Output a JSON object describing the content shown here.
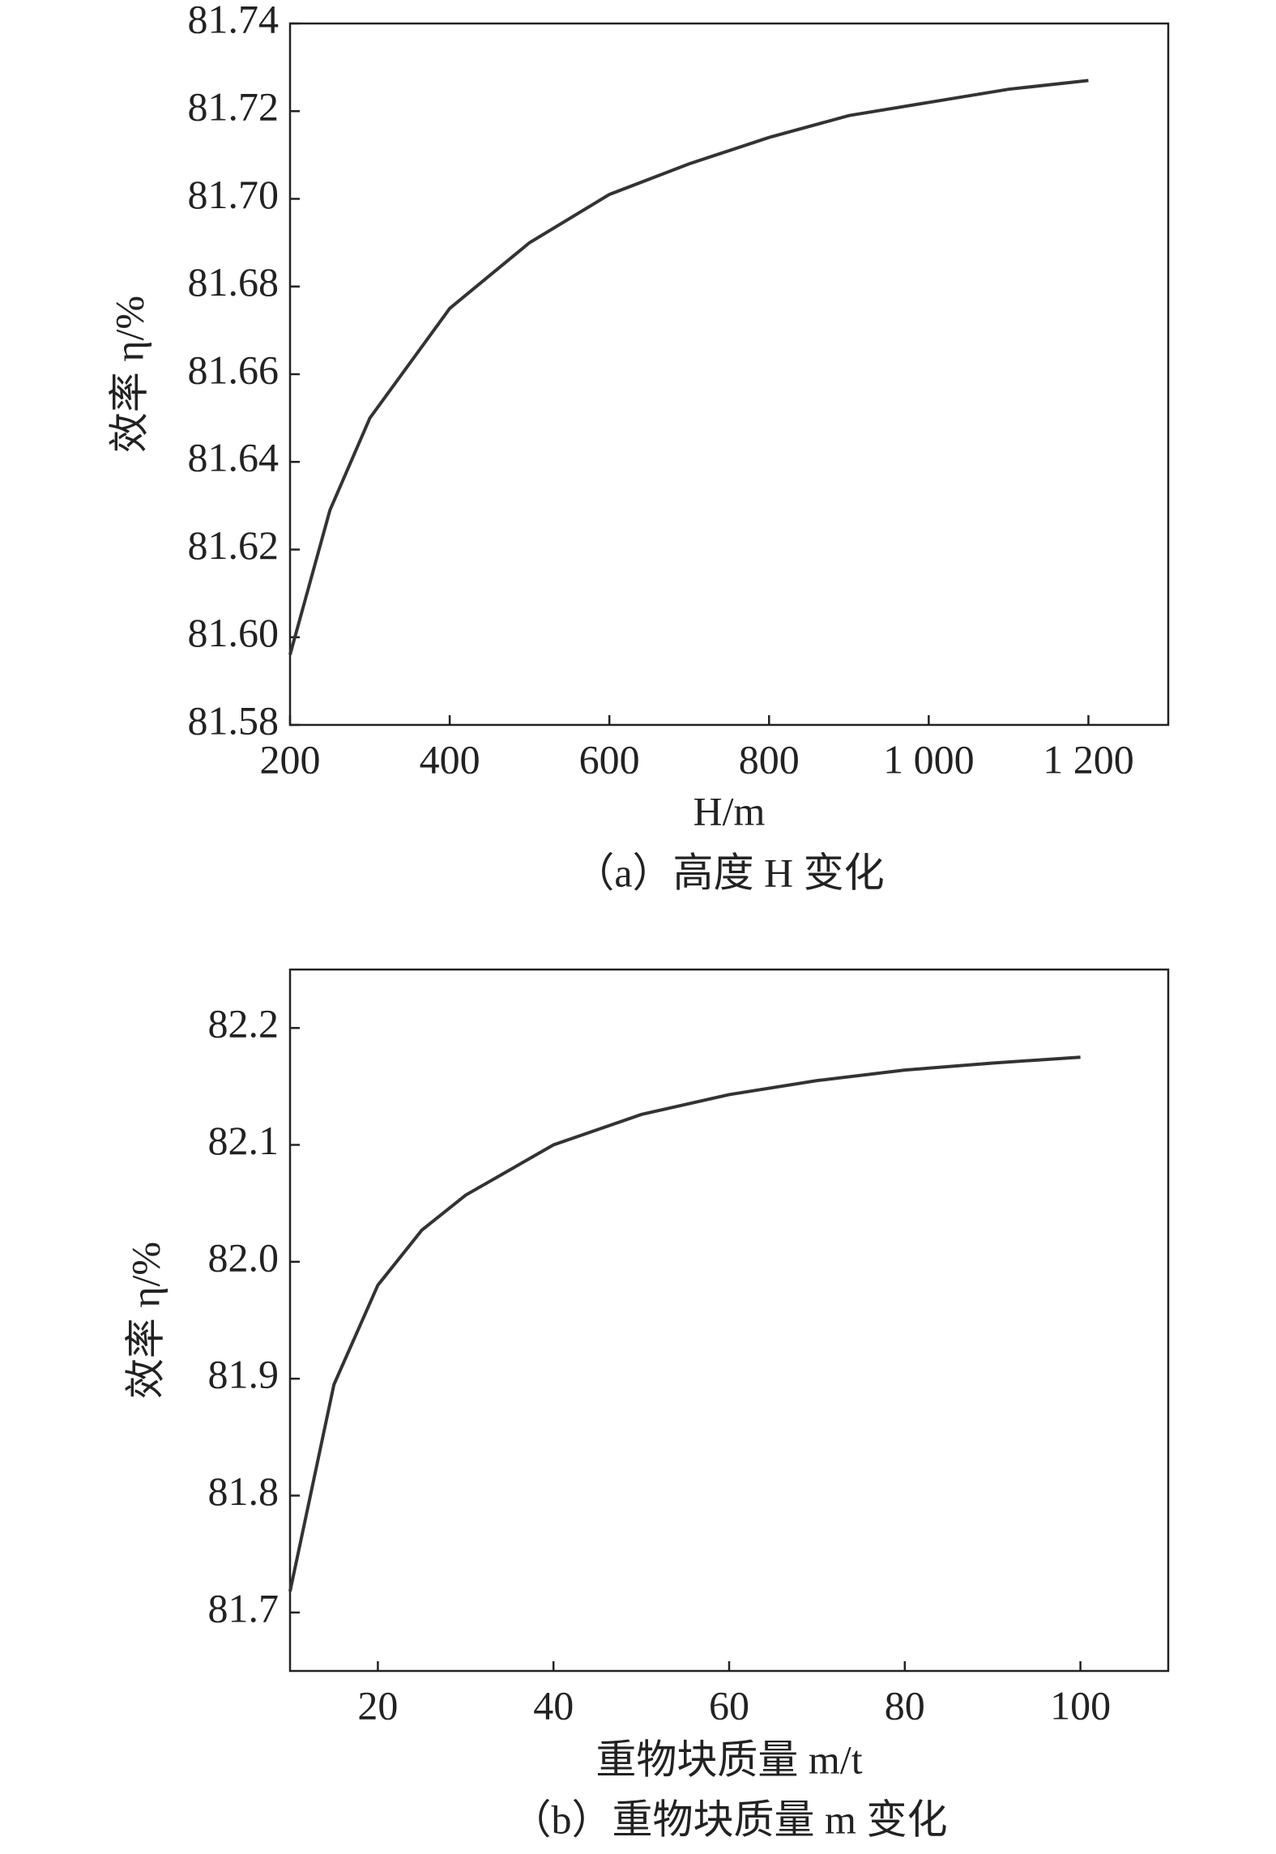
{
  "chart_data": [
    {
      "type": "line",
      "ylabel": "效率 η/%",
      "xlabel": "H/m",
      "caption": "（a）高度 H 变化",
      "color": "#333333",
      "x": [
        200,
        250,
        300,
        400,
        500,
        600,
        700,
        800,
        900,
        1000,
        1100,
        1200
      ],
      "values": [
        81.596,
        81.629,
        81.65,
        81.675,
        81.69,
        81.701,
        81.708,
        81.714,
        81.719,
        81.722,
        81.725,
        81.727
      ],
      "xlim": [
        200,
        1300
      ],
      "xticks": [
        200,
        400,
        600,
        800,
        {
          "value": 1000,
          "label": "1 000"
        },
        {
          "value": 1200,
          "label": "1 200"
        }
      ],
      "ylim": [
        81.58,
        81.74
      ],
      "yticks": [
        81.58,
        {
          "value": 81.6,
          "label": "81.60"
        },
        81.62,
        81.64,
        81.66,
        81.68,
        {
          "value": 81.7,
          "label": "81.70"
        },
        81.72,
        81.74
      ]
    },
    {
      "type": "line",
      "ylabel": "效率 η/%",
      "xlabel": "重物块质量 m/t",
      "caption": "（b）重物块质量 m 变化",
      "color": "#333333",
      "x": [
        10,
        15,
        20,
        25,
        30,
        40,
        50,
        60,
        70,
        80,
        90,
        100
      ],
      "values": [
        81.718,
        81.895,
        81.98,
        82.027,
        82.057,
        82.1,
        82.126,
        82.143,
        82.155,
        82.164,
        82.17,
        82.175
      ],
      "xlim": [
        10,
        110
      ],
      "xticks": [
        20,
        40,
        60,
        80,
        100
      ],
      "ylim": [
        81.65,
        82.25
      ],
      "yticks": [
        81.7,
        81.8,
        81.9,
        {
          "value": 82,
          "label": "82.0"
        },
        82.1,
        82.2
      ]
    }
  ]
}
